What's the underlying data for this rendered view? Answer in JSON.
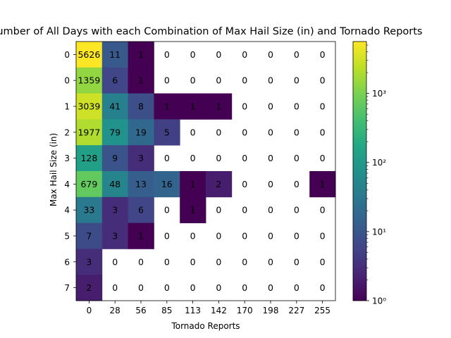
{
  "chart_data": {
    "type": "heatmap",
    "title": "Number of All Days with each Combination of Max Hail Size (in) and Tornado Reports",
    "xlabel": "Tornado Reports",
    "ylabel": "Max Hail Size (in)",
    "x_tick_labels": [
      "0",
      "28",
      "56",
      "85",
      "113",
      "142",
      "170",
      "198",
      "227",
      "255"
    ],
    "y_tick_labels": [
      "0",
      "0",
      "1",
      "2",
      "3",
      "4",
      "4",
      "5",
      "6",
      "7"
    ],
    "values": [
      [
        5626,
        11,
        1,
        0,
        0,
        0,
        0,
        0,
        0,
        0
      ],
      [
        1359,
        6,
        1,
        0,
        0,
        0,
        0,
        0,
        0,
        0
      ],
      [
        3039,
        41,
        8,
        1,
        1,
        1,
        0,
        0,
        0,
        0
      ],
      [
        1977,
        79,
        19,
        5,
        0,
        0,
        0,
        0,
        0,
        0
      ],
      [
        128,
        9,
        3,
        0,
        0,
        0,
        0,
        0,
        0,
        0
      ],
      [
        679,
        48,
        13,
        16,
        1,
        2,
        0,
        0,
        0,
        1
      ],
      [
        33,
        3,
        6,
        0,
        1,
        0,
        0,
        0,
        0,
        0
      ],
      [
        7,
        3,
        1,
        0,
        0,
        0,
        0,
        0,
        0,
        0
      ],
      [
        3,
        0,
        0,
        0,
        0,
        0,
        0,
        0,
        0,
        0
      ],
      [
        2,
        0,
        0,
        0,
        0,
        0,
        0,
        0,
        0,
        0
      ]
    ],
    "zero_cells": "white (not colored)",
    "color_scale": {
      "type": "log",
      "colormap": "viridis",
      "range": [
        1,
        5626
      ],
      "tick_labels": [
        "10⁰",
        "10¹",
        "10²",
        "10³"
      ]
    }
  }
}
